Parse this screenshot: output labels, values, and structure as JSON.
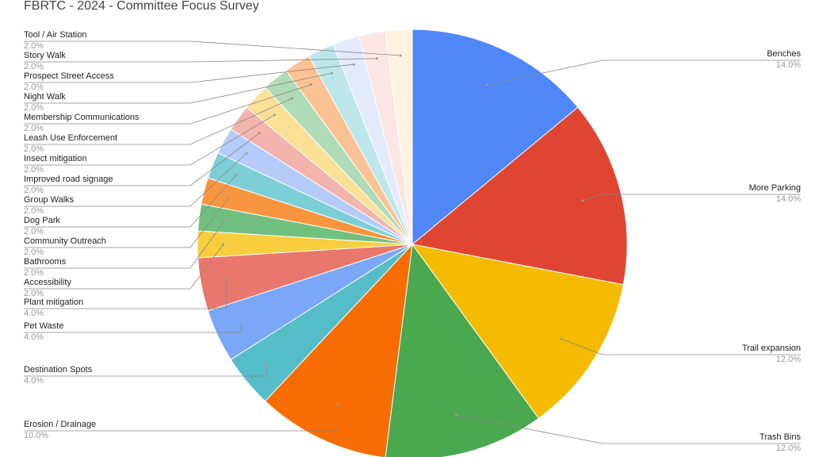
{
  "chart_data": {
    "type": "pie",
    "title": "FBRTC - 2024 - Committee Focus Survey",
    "categories": [
      "Benches",
      "More Parking",
      "Trail expansion",
      "Trash Bins",
      "Erosion / Drainage",
      "Destination Spots",
      "Pet Waste",
      "Plant mitigation",
      "Accessibility",
      "Bathrooms",
      "Community Outreach",
      "Dog Park",
      "Group Walks",
      "Improved road signage",
      "Insect mitigation",
      "Leash Use Enforcement",
      "Membership Communications",
      "Night Walk",
      "Prospect Street Access",
      "Story Walk",
      "Tool / Air Station"
    ],
    "values": [
      14,
      14,
      12,
      12,
      10,
      4,
      4,
      4,
      2,
      2,
      2,
      2,
      2,
      2,
      2,
      2,
      2,
      2,
      2,
      2,
      2
    ],
    "value_labels": [
      "14.0%",
      "14.0%",
      "12.0%",
      "12.0%",
      "10.0%",
      "4.0%",
      "4.0%",
      "4.0%",
      "2.0%",
      "2.0%",
      "2.0%",
      "2.0%",
      "2.0%",
      "2.0%",
      "2.0%",
      "2.0%",
      "2.0%",
      "2.0%",
      "2.0%",
      "2.0%",
      "2.0%"
    ],
    "colors": [
      "#5087f7",
      "#e04532",
      "#f5bb00",
      "#4aa84f",
      "#f76d02",
      "#55bdc8",
      "#7aa7f7",
      "#ea776c",
      "#f8cd3e",
      "#72c07f",
      "#f9953e",
      "#7ccfd6",
      "#b5ccfa",
      "#f3b4ad",
      "#fbe095",
      "#afdcb7",
      "#fcc293",
      "#bde6ea",
      "#e2eafc",
      "#fbe6e4",
      "#fff3e0"
    ]
  }
}
